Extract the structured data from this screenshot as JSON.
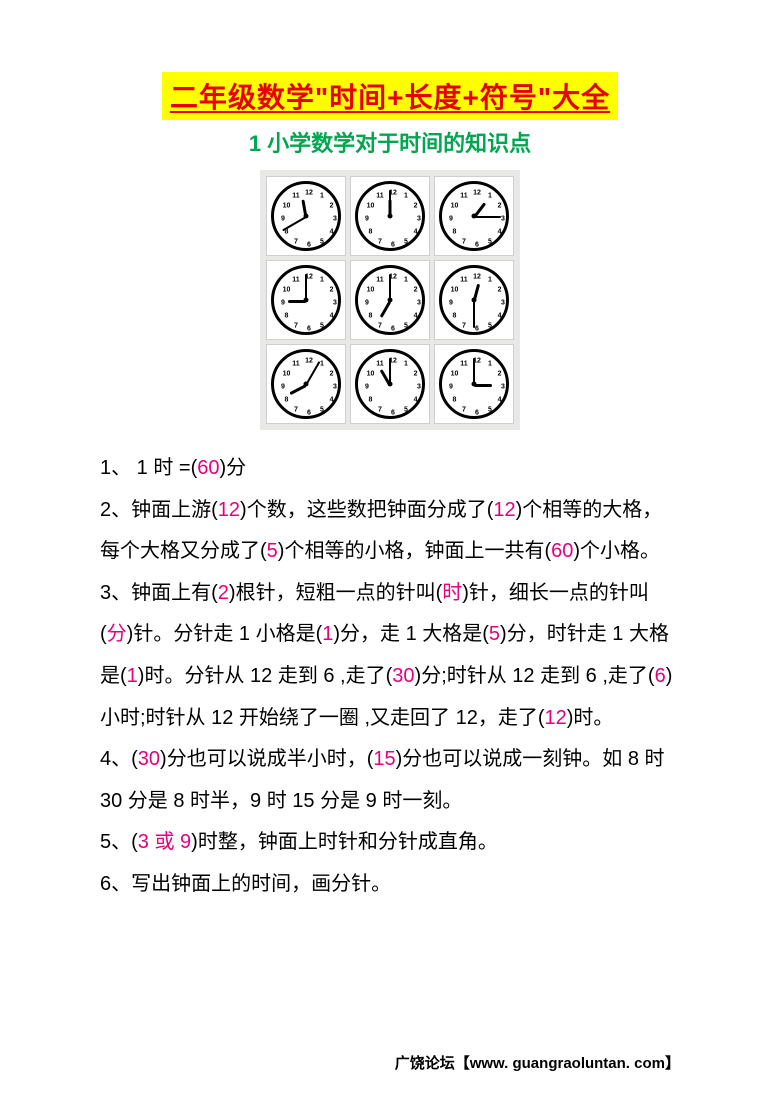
{
  "title": "二年级数学\"时间+长度+符号\"大全",
  "subtitle": "1 小学数学对于时间的知识点",
  "colors": {
    "title_bg": "#ffff00",
    "title_text": "#e60000",
    "subtitle_text": "#00a650",
    "highlight": "#e6007e",
    "body_text": "#000000",
    "background": "#ffffff"
  },
  "clocks": [
    {
      "hour": 11,
      "minute": 40
    },
    {
      "hour": 12,
      "minute": 0
    },
    {
      "hour": 1,
      "minute": 15
    },
    {
      "hour": 9,
      "minute": 0
    },
    {
      "hour": 7,
      "minute": 0
    },
    {
      "hour": 12,
      "minute": 30
    },
    {
      "hour": 8,
      "minute": 5
    },
    {
      "hour": 11,
      "minute": 0
    },
    {
      "hour": 3,
      "minute": 0
    }
  ],
  "lines": [
    [
      {
        "t": "1、 1 时 =(",
        "h": false
      },
      {
        "t": "60",
        "h": true
      },
      {
        "t": ")分",
        "h": false
      }
    ],
    [
      {
        "t": "2、钟面上游(",
        "h": false
      },
      {
        "t": "12",
        "h": true
      },
      {
        "t": ")个数，这些数把钟面分成了(",
        "h": false
      },
      {
        "t": "12",
        "h": true
      },
      {
        "t": ")个相等的大格，每个大格又分成了(",
        "h": false
      },
      {
        "t": "5",
        "h": true
      },
      {
        "t": ")个相等的小格，钟面上一共有(",
        "h": false
      },
      {
        "t": "60",
        "h": true
      },
      {
        "t": ")个小格。",
        "h": false
      }
    ],
    [
      {
        "t": "3、钟面上有(",
        "h": false
      },
      {
        "t": "2",
        "h": true
      },
      {
        "t": ")根针，短粗一点的针叫(",
        "h": false
      },
      {
        "t": "时",
        "h": true
      },
      {
        "t": ")针，细长一点的针叫(",
        "h": false
      },
      {
        "t": "分",
        "h": true
      },
      {
        "t": ")针。分针走 1 小格是(",
        "h": false
      },
      {
        "t": "1",
        "h": true
      },
      {
        "t": ")分，走 1 大格是(",
        "h": false
      },
      {
        "t": "5",
        "h": true
      },
      {
        "t": ")分，时针走 1 大格是(",
        "h": false
      },
      {
        "t": "1",
        "h": true
      },
      {
        "t": ")时。分针从 12 走到 6 ,走了(",
        "h": false
      },
      {
        "t": "30",
        "h": true
      },
      {
        "t": ")分;时针从 12 走到 6 ,走了(",
        "h": false
      },
      {
        "t": "6",
        "h": true
      },
      {
        "t": ")小时;时针从 12 开始绕了一圈 ,又走回了 12，走了(",
        "h": false
      },
      {
        "t": "12",
        "h": true
      },
      {
        "t": ")时。",
        "h": false
      }
    ],
    [
      {
        "t": "4、(",
        "h": false
      },
      {
        "t": "30",
        "h": true
      },
      {
        "t": ")分也可以说成半小时，(",
        "h": false
      },
      {
        "t": "15",
        "h": true
      },
      {
        "t": ")分也可以说成一刻钟。如 8 时 30 分是 8 时半，9 时 15 分是 9 时一刻。",
        "h": false
      }
    ],
    [
      {
        "t": "5、(",
        "h": false
      },
      {
        "t": "3 或 9",
        "h": true
      },
      {
        "t": ")时整，钟面上时针和分针成直角。",
        "h": false
      }
    ],
    [
      {
        "t": "6、写出钟面上的时间，画分针。",
        "h": false
      }
    ]
  ],
  "footer": "广饶论坛【www. guangraoluntan. com】"
}
